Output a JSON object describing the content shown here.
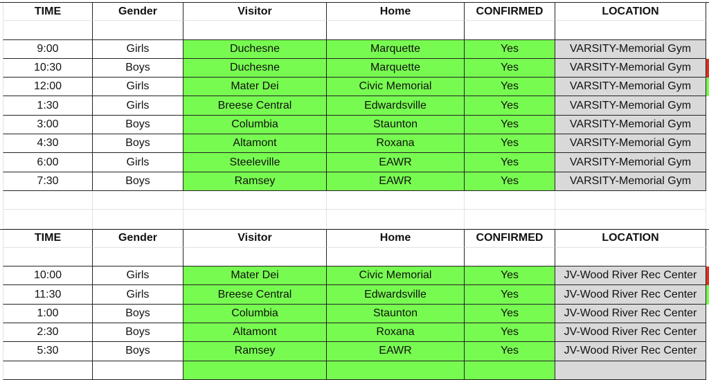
{
  "colors": {
    "confirmed_fill": "#77fb50",
    "location_fill": "#d9d9d9",
    "marker_red": "#e0301e",
    "marker_green": "#77fb50"
  },
  "headers": [
    "TIME",
    "Gender",
    "Visitor",
    "Home",
    "CONFIRMED",
    "LOCATION"
  ],
  "varsity": [
    {
      "time": "9:00",
      "gender": "Girls",
      "visitor": "Duchesne",
      "home": "Marquette",
      "confirmed": "Yes",
      "location": "VARSITY-Memorial Gym",
      "marker": ""
    },
    {
      "time": "10:30",
      "gender": "Boys",
      "visitor": "Duchesne",
      "home": "Marquette",
      "confirmed": "Yes",
      "location": "VARSITY-Memorial Gym",
      "marker": "red"
    },
    {
      "time": "12:00",
      "gender": "Girls",
      "visitor": "Mater Dei",
      "home": "Civic Memorial",
      "confirmed": "Yes",
      "location": "VARSITY-Memorial Gym",
      "marker": "green"
    },
    {
      "time": "1:30",
      "gender": "Girls",
      "visitor": "Breese Central",
      "home": "Edwardsville",
      "confirmed": "Yes",
      "location": "VARSITY-Memorial Gym",
      "marker": ""
    },
    {
      "time": "3:00",
      "gender": "Boys",
      "visitor": "Columbia",
      "home": "Staunton",
      "confirmed": "Yes",
      "location": "VARSITY-Memorial Gym",
      "marker": ""
    },
    {
      "time": "4:30",
      "gender": "Boys",
      "visitor": "Altamont",
      "home": "Roxana",
      "confirmed": "Yes",
      "location": "VARSITY-Memorial Gym",
      "marker": ""
    },
    {
      "time": "6:00",
      "gender": "Girls",
      "visitor": "Steeleville",
      "home": "EAWR",
      "confirmed": "Yes",
      "location": "VARSITY-Memorial Gym",
      "marker": ""
    },
    {
      "time": "7:30",
      "gender": "Boys",
      "visitor": "Ramsey",
      "home": "EAWR",
      "confirmed": "Yes",
      "location": "VARSITY-Memorial Gym",
      "marker": ""
    }
  ],
  "jv": [
    {
      "time": "10:00",
      "gender": "Girls",
      "visitor": "Mater Dei",
      "home": "Civic Memorial",
      "confirmed": "Yes",
      "location": "JV-Wood River Rec Center",
      "marker": "red"
    },
    {
      "time": "11:30",
      "gender": "Girls",
      "visitor": "Breese Central",
      "home": "Edwardsville",
      "confirmed": "Yes",
      "location": "JV-Wood River Rec Center",
      "marker": "green"
    },
    {
      "time": "1:00",
      "gender": "Boys",
      "visitor": "Columbia",
      "home": "Staunton",
      "confirmed": "Yes",
      "location": "JV-Wood River Rec Center",
      "marker": ""
    },
    {
      "time": "2:30",
      "gender": "Boys",
      "visitor": "Altamont",
      "home": "Roxana",
      "confirmed": "Yes",
      "location": "JV-Wood River Rec Center",
      "marker": ""
    },
    {
      "time": "5:30",
      "gender": "Boys",
      "visitor": "Ramsey",
      "home": "EAWR",
      "confirmed": "Yes",
      "location": "JV-Wood River Rec Center",
      "marker": ""
    }
  ]
}
